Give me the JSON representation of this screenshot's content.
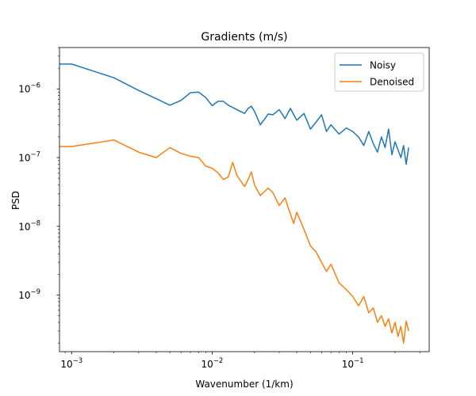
{
  "chart_data": {
    "type": "line",
    "title": "Gradients (m/s)",
    "xlabel": "Wavenumber (1/km)",
    "ylabel": "PSD",
    "xscale": "log",
    "yscale": "log",
    "xlim": [
      0.00082,
      0.35
    ],
    "ylim": [
      1.5e-10,
      4e-06
    ],
    "grid": false,
    "legend_position": "top-right",
    "xticks": [
      {
        "value": 0.001,
        "base": "10",
        "exp": "−3"
      },
      {
        "value": 0.01,
        "base": "10",
        "exp": "−2"
      },
      {
        "value": 0.1,
        "base": "10",
        "exp": "−1"
      }
    ],
    "yticks": [
      {
        "value": 1e-09,
        "base": "10",
        "exp": "−9"
      },
      {
        "value": 1e-08,
        "base": "10",
        "exp": "−8"
      },
      {
        "value": 1e-07,
        "base": "10",
        "exp": "−7"
      },
      {
        "value": 1e-06,
        "base": "10",
        "exp": "−6"
      }
    ],
    "series": [
      {
        "name": "Noisy",
        "color": "#1f77b4",
        "x": [
          0.00078,
          0.001,
          0.002,
          0.003,
          0.004,
          0.005,
          0.006,
          0.007,
          0.008,
          0.009,
          0.01,
          0.011,
          0.012,
          0.013,
          0.015,
          0.017,
          0.018,
          0.019,
          0.02,
          0.022,
          0.024,
          0.025,
          0.027,
          0.03,
          0.033,
          0.036,
          0.04,
          0.045,
          0.05,
          0.055,
          0.06,
          0.065,
          0.07,
          0.08,
          0.09,
          0.1,
          0.11,
          0.12,
          0.13,
          0.14,
          0.15,
          0.16,
          0.17,
          0.18,
          0.19,
          0.2,
          0.21,
          0.22,
          0.23,
          0.24,
          0.25
        ],
        "y": [
          2.3e-06,
          2.3e-06,
          1.45e-06,
          9.5e-07,
          7.2e-07,
          5.8e-07,
          6.8e-07,
          8.8e-07,
          9e-07,
          7.5e-07,
          5.7e-07,
          6.6e-07,
          6.6e-07,
          5.8e-07,
          5e-07,
          4.4e-07,
          5.2e-07,
          5.6e-07,
          4.7e-07,
          3e-07,
          3.8e-07,
          4.3e-07,
          4.2e-07,
          5e-07,
          3.7e-07,
          5.2e-07,
          3.5e-07,
          4.4e-07,
          2.6e-07,
          3.3e-07,
          4.2e-07,
          2.4e-07,
          3e-07,
          2.2e-07,
          2.7e-07,
          2.4e-07,
          2e-07,
          1.5e-07,
          2.4e-07,
          1.6e-07,
          1.2e-07,
          2e-07,
          1.4e-07,
          2.6e-07,
          1.1e-07,
          1.7e-07,
          1.3e-07,
          1e-07,
          1.5e-07,
          8e-08,
          1.4e-07
        ]
      },
      {
        "name": "Denoised",
        "color": "#ff7f0e",
        "x": [
          0.00078,
          0.001,
          0.002,
          0.003,
          0.004,
          0.005,
          0.006,
          0.007,
          0.008,
          0.009,
          0.01,
          0.011,
          0.012,
          0.013,
          0.014,
          0.015,
          0.017,
          0.018,
          0.019,
          0.02,
          0.022,
          0.025,
          0.027,
          0.03,
          0.033,
          0.035,
          0.038,
          0.04,
          0.045,
          0.05,
          0.055,
          0.06,
          0.065,
          0.07,
          0.08,
          0.09,
          0.1,
          0.11,
          0.12,
          0.13,
          0.14,
          0.15,
          0.16,
          0.17,
          0.18,
          0.19,
          0.2,
          0.21,
          0.22,
          0.23,
          0.24,
          0.25
        ],
        "y": [
          1.45e-07,
          1.45e-07,
          1.8e-07,
          1.2e-07,
          1e-07,
          1.4e-07,
          1.15e-07,
          1.05e-07,
          1e-07,
          7.5e-08,
          7e-08,
          6e-08,
          4.8e-08,
          5.2e-08,
          8.5e-08,
          5.5e-08,
          3.8e-08,
          4.8e-08,
          6.2e-08,
          4e-08,
          2.8e-08,
          3.6e-08,
          3.1e-08,
          2e-08,
          2.6e-08,
          1.8e-08,
          1.1e-08,
          1.6e-08,
          9e-09,
          5.2e-09,
          4.2e-09,
          3e-09,
          2.2e-09,
          2.8e-09,
          1.5e-09,
          1.2e-09,
          9.5e-10,
          7e-10,
          9.5e-10,
          5.5e-10,
          6.5e-10,
          4e-10,
          5e-10,
          3.5e-10,
          4.5e-10,
          2.8e-10,
          4e-10,
          2.5e-10,
          3.5e-10,
          2e-10,
          4.2e-10,
          3e-10
        ]
      }
    ]
  }
}
